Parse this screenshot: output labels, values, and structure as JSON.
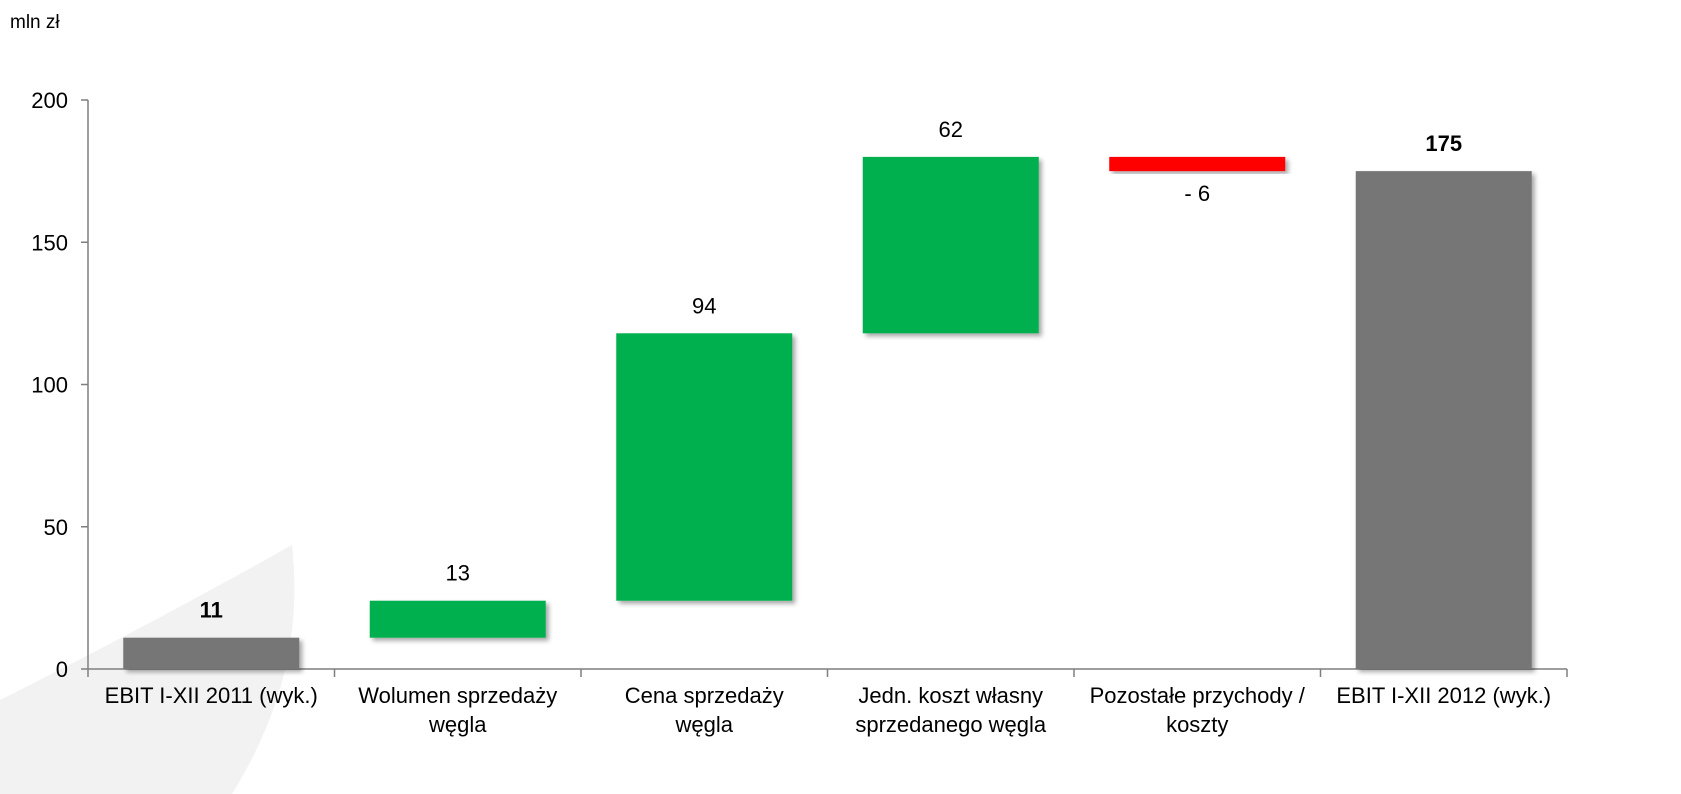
{
  "unit_label": "mln zł",
  "colors": {
    "total": "#767676",
    "increase": "#00b050",
    "decrease": "#ff0000",
    "axis": "#7f7f7f",
    "decor": "#f2f2f2"
  },
  "chart_data": {
    "type": "waterfall",
    "ylabel": "mln zł",
    "ylim": [
      0,
      200
    ],
    "yticks": [
      0,
      50,
      100,
      150,
      200
    ],
    "grid": false,
    "legend": "none",
    "bars": [
      {
        "category": [
          "EBIT I-XII 2011 (wyk.)"
        ],
        "kind": "total",
        "start": 0,
        "end": 11,
        "label": "11"
      },
      {
        "category": [
          "Wolumen sprzedaży",
          "węgla"
        ],
        "kind": "increase",
        "start": 11,
        "end": 24,
        "label": "13"
      },
      {
        "category": [
          "Cena sprzedaży",
          "węgla"
        ],
        "kind": "increase",
        "start": 24,
        "end": 118,
        "label": "94"
      },
      {
        "category": [
          "Jedn. koszt własny",
          "sprzedanego węgla"
        ],
        "kind": "increase",
        "start": 118,
        "end": 180,
        "label": "62"
      },
      {
        "category": [
          "Pozostałe przychody /",
          "koszty"
        ],
        "kind": "decrease",
        "start": 180,
        "end": 175,
        "label": "- 6"
      },
      {
        "category": [
          "EBIT I-XII 2012 (wyk.)"
        ],
        "kind": "total",
        "start": 0,
        "end": 175,
        "label": "175"
      }
    ]
  }
}
